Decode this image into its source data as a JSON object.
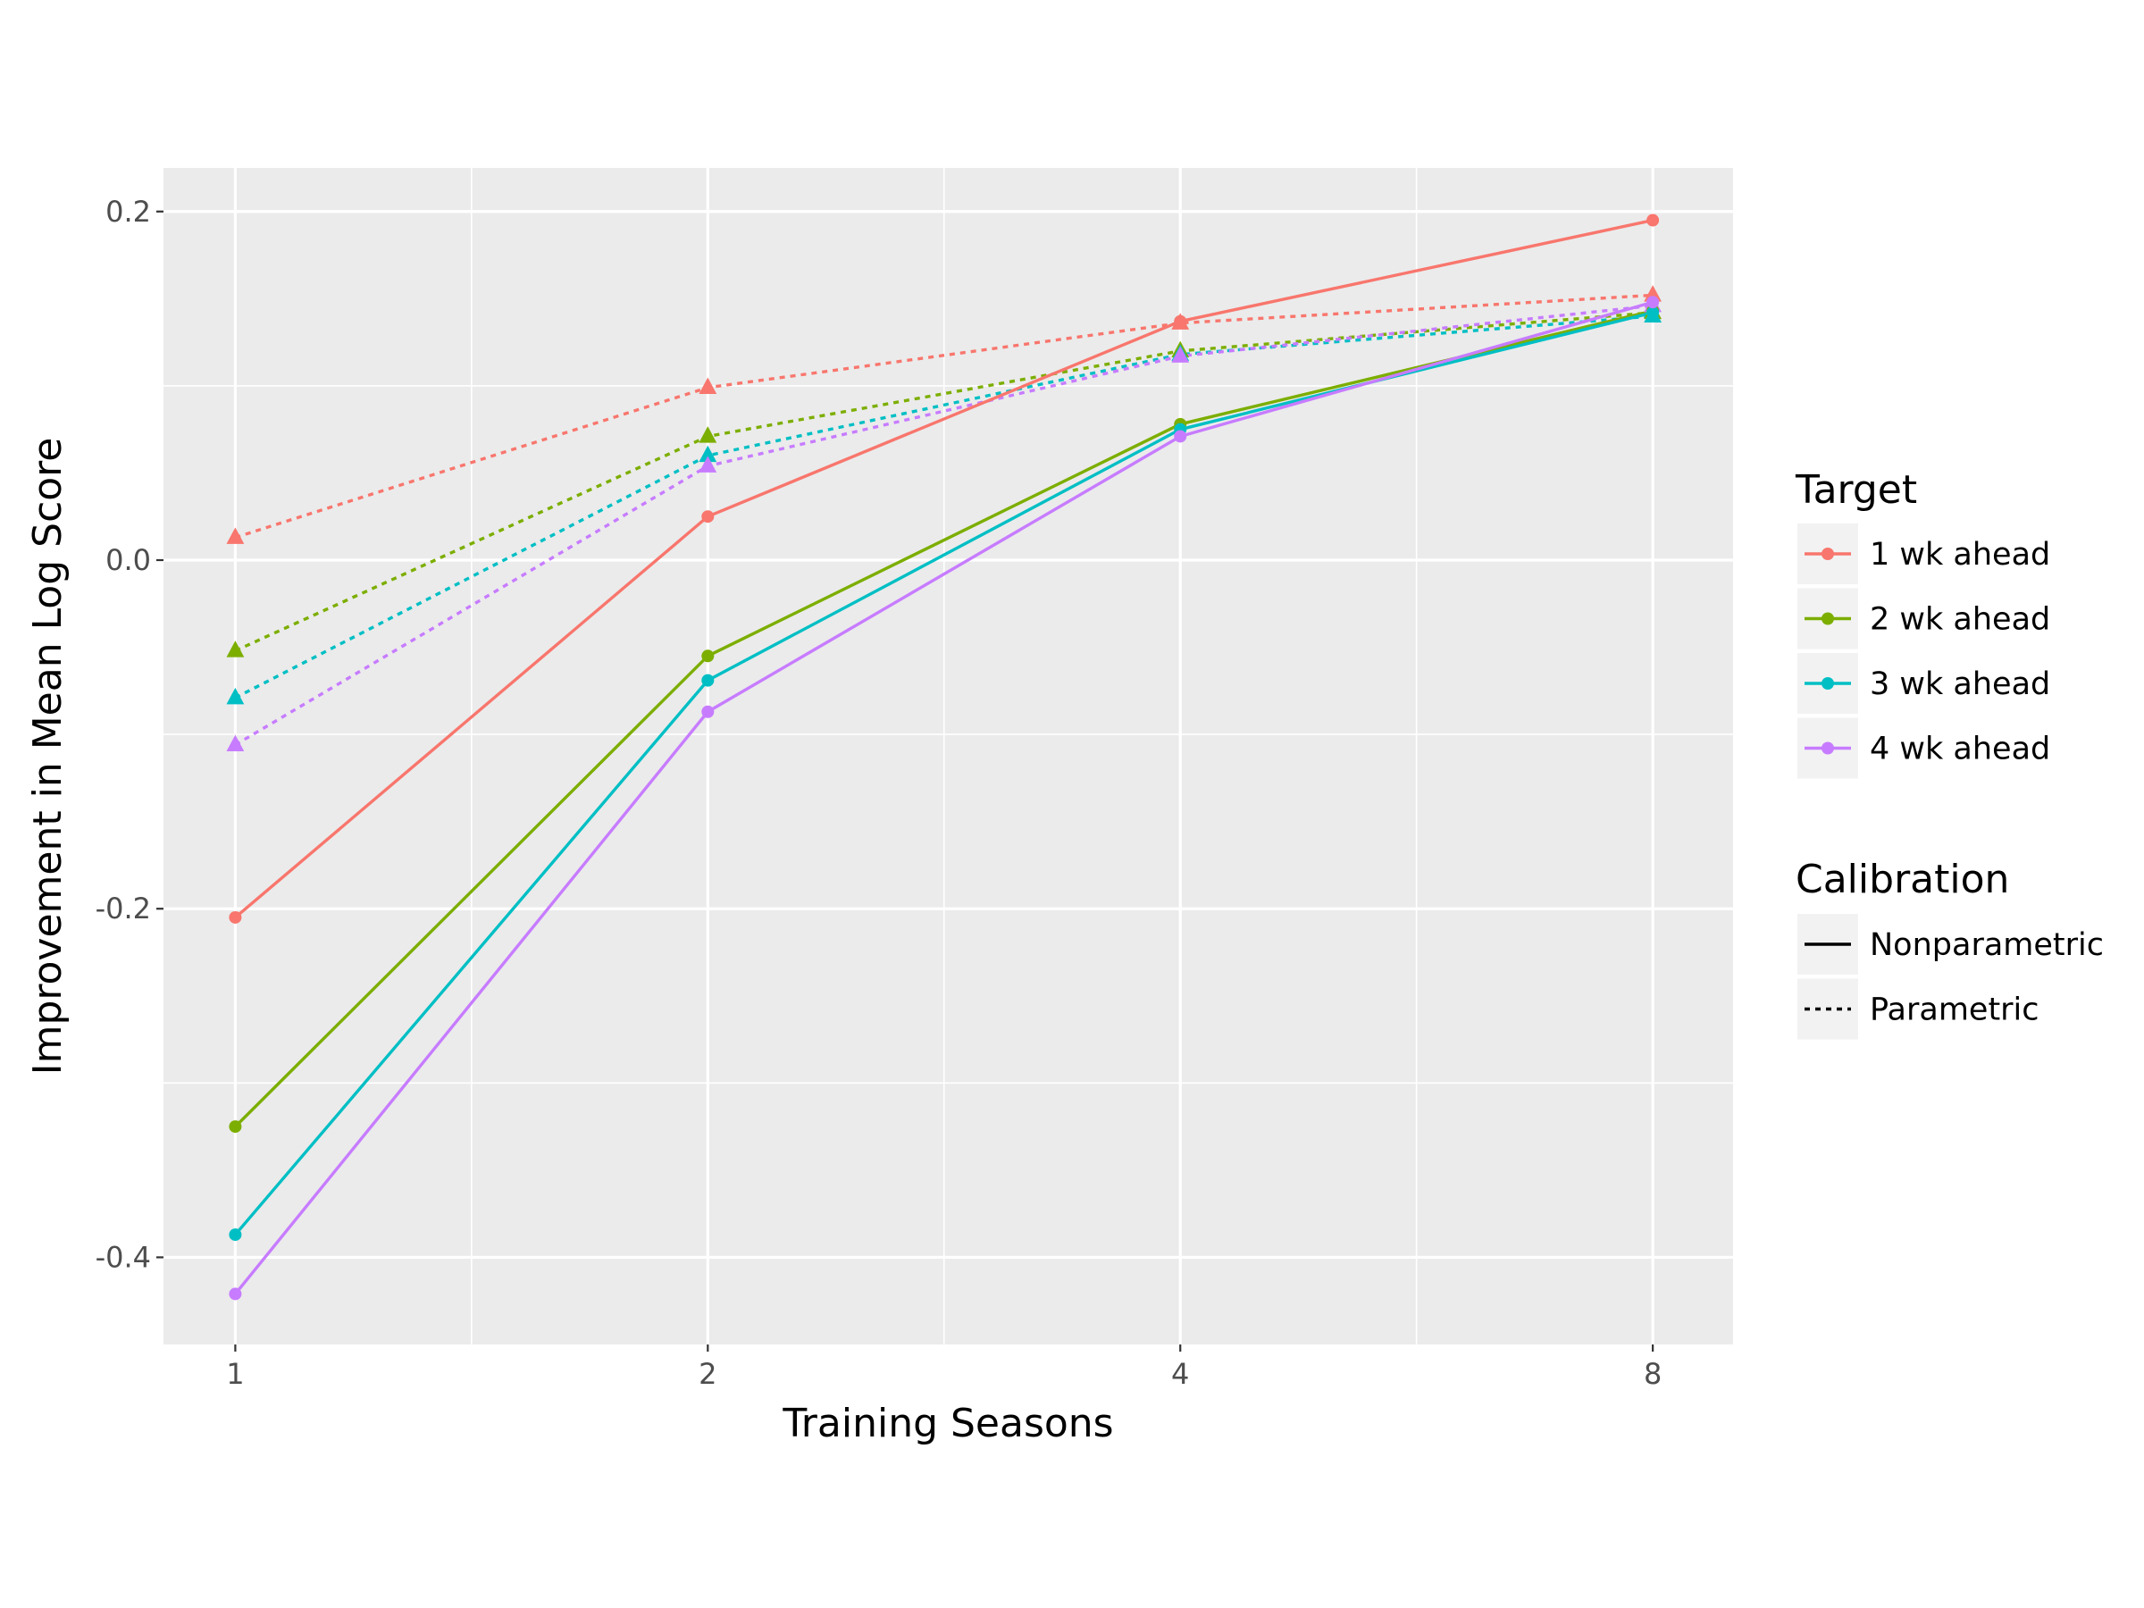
{
  "chart_data": {
    "type": "line",
    "xlabel": "Training Seasons",
    "ylabel": "Improvement in Mean Log Score",
    "x_scale": "log2",
    "x": [
      1,
      2,
      4,
      8
    ],
    "x_tick_labels": [
      "1",
      "2",
      "4",
      "8"
    ],
    "y_tick_labels": [
      "0.2",
      "0.0",
      "-0.2",
      "-0.4"
    ],
    "xlim": [
      0.9,
      9
    ],
    "ylim": [
      -0.45,
      0.225
    ],
    "grid": true,
    "legend_position": "right",
    "legends": {
      "target": {
        "title": "Target",
        "items": [
          {
            "label": "1 wk ahead",
            "color": "#F8766D"
          },
          {
            "label": "2 wk ahead",
            "color": "#7CAE00"
          },
          {
            "label": "3 wk ahead",
            "color": "#00BFC4"
          },
          {
            "label": "4 wk ahead",
            "color": "#C77CFF"
          }
        ]
      },
      "calibration": {
        "title": "Calibration",
        "items": [
          {
            "label": "Nonparametric",
            "line": "solid",
            "marker": "circle"
          },
          {
            "label": "Parametric",
            "line": "dotted",
            "marker": "triangle"
          }
        ]
      }
    },
    "series": [
      {
        "target": "1 wk ahead",
        "calibration": "Nonparametric",
        "color": "#F8766D",
        "values": [
          -0.205,
          0.025,
          0.137,
          0.195
        ]
      },
      {
        "target": "2 wk ahead",
        "calibration": "Nonparametric",
        "color": "#7CAE00",
        "values": [
          -0.325,
          -0.055,
          0.078,
          0.143
        ]
      },
      {
        "target": "3 wk ahead",
        "calibration": "Nonparametric",
        "color": "#00BFC4",
        "values": [
          -0.387,
          -0.069,
          0.075,
          0.142
        ]
      },
      {
        "target": "4 wk ahead",
        "calibration": "Nonparametric",
        "color": "#C77CFF",
        "values": [
          -0.421,
          -0.087,
          0.071,
          0.148
        ]
      },
      {
        "target": "1 wk ahead",
        "calibration": "Parametric",
        "color": "#F8766D",
        "values": [
          0.013,
          0.099,
          0.136,
          0.152
        ]
      },
      {
        "target": "2 wk ahead",
        "calibration": "Parametric",
        "color": "#7CAE00",
        "values": [
          -0.052,
          0.071,
          0.12,
          0.142
        ]
      },
      {
        "target": "3 wk ahead",
        "calibration": "Parametric",
        "color": "#00BFC4",
        "values": [
          -0.079,
          0.06,
          0.118,
          0.14
        ]
      },
      {
        "target": "4 wk ahead",
        "calibration": "Parametric",
        "color": "#C77CFF",
        "values": [
          -0.106,
          0.054,
          0.117,
          0.146
        ]
      }
    ]
  }
}
